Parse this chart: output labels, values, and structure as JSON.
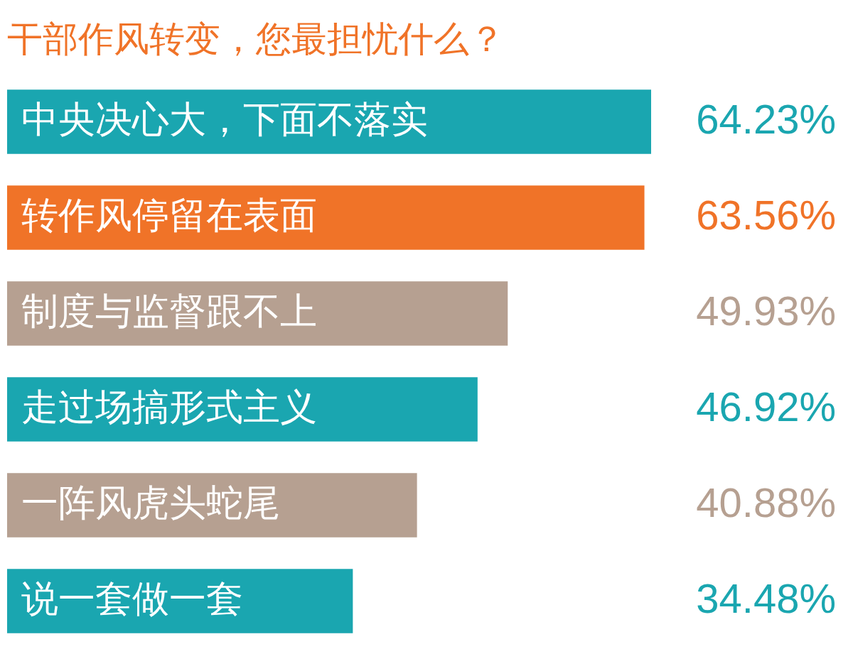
{
  "chart_data": {
    "type": "bar",
    "orientation": "horizontal",
    "title": "干部作风转变，您最担忧什么？",
    "categories": [
      "中央决心大，下面不落实",
      "转作风停留在表面",
      "制度与监督跟不上",
      "走过场搞形式主义",
      "一阵风虎头蛇尾",
      "说一套做一套"
    ],
    "values": [
      64.23,
      63.56,
      49.93,
      46.92,
      40.88,
      34.48
    ],
    "value_labels": [
      "64.23%",
      "63.56%",
      "49.93%",
      "46.92%",
      "40.88%",
      "34.48%"
    ],
    "colors": [
      "#1aa6b0",
      "#f07328",
      "#b6a091",
      "#1aa6b0",
      "#b6a091",
      "#1aa6b0"
    ],
    "legend": false
  }
}
